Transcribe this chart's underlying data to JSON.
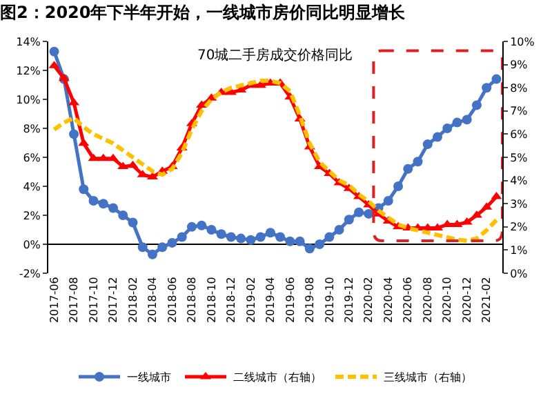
{
  "chart_data": {
    "type": "line",
    "title": "图2：2020年下半年开始，一线城市房价同比明显增长",
    "subtitle": "70城二手房成交价格同比",
    "categories": [
      "2017-06",
      null,
      "2017-08",
      null,
      "2017-10",
      null,
      "2017-12",
      null,
      "2018-02",
      null,
      "2018-04",
      null,
      "2018-06",
      null,
      "2018-08",
      null,
      "2018-10",
      null,
      "2018-12",
      null,
      "2019-02",
      null,
      "2019-04",
      null,
      "2019-06",
      null,
      "2019-08",
      null,
      "2019-10",
      null,
      "2019-12",
      null,
      "2020-02",
      null,
      "2020-04",
      null,
      "2020-06",
      null,
      "2020-08",
      null,
      "2020-10",
      null,
      "2020-12",
      null,
      "2021-02",
      null
    ],
    "series": [
      {
        "name": "一线城市",
        "color": "#4472c4",
        "marker": "circle",
        "line_style": "solid",
        "values": [
          13.3,
          11.4,
          7.6,
          3.8,
          3.0,
          2.8,
          2.5,
          2.0,
          1.5,
          -0.2,
          -0.7,
          -0.2,
          0.1,
          0.5,
          1.2,
          1.3,
          1.0,
          0.7,
          0.5,
          0.4,
          0.3,
          0.5,
          0.8,
          0.5,
          0.2,
          0.2,
          -0.3,
          0.0,
          0.5,
          1.0,
          1.7,
          2.2,
          2.1,
          2.5,
          3.0,
          4.0,
          5.2,
          5.7,
          6.9,
          7.4,
          8.0,
          8.4,
          8.6,
          9.6,
          10.8,
          11.4
        ]
      },
      {
        "name": "二线城市（右轴）",
        "color": "#ff0000",
        "marker": "triangle",
        "line_style": "solid",
        "axis": "y2",
        "values": [
          8.95,
          8.4,
          7.35,
          5.6,
          4.95,
          4.95,
          4.95,
          4.6,
          4.65,
          4.25,
          4.15,
          4.4,
          4.6,
          5.4,
          6.45,
          7.25,
          7.55,
          7.8,
          7.8,
          7.9,
          8.1,
          8.1,
          8.2,
          8.2,
          7.6,
          6.65,
          5.45,
          4.6,
          4.3,
          3.9,
          3.65,
          3.3,
          2.95,
          2.55,
          2.25,
          2.0,
          1.95,
          1.95,
          1.95,
          1.95,
          2.1,
          2.1,
          2.2,
          2.5,
          2.85,
          3.3
        ]
      },
      {
        "name": "三线城市（右轴）",
        "color": "#ffc000",
        "marker": "none",
        "line_style": "dashed",
        "axis": "y2",
        "values": [
          6.2,
          6.5,
          6.7,
          6.3,
          6.0,
          5.8,
          5.6,
          5.3,
          5.0,
          4.7,
          4.4,
          4.25,
          4.5,
          5.2,
          6.2,
          7.0,
          7.5,
          7.8,
          8.0,
          8.1,
          8.2,
          8.3,
          8.3,
          8.2,
          7.85,
          6.8,
          5.6,
          4.8,
          4.4,
          4.0,
          3.8,
          3.4,
          3.1,
          2.7,
          2.4,
          2.1,
          1.95,
          1.85,
          1.75,
          1.65,
          1.55,
          1.45,
          1.4,
          1.5,
          1.85,
          2.3
        ]
      }
    ],
    "ylim": [
      -2,
      14
    ],
    "yticks": [
      {
        "value": -2,
        "label": "-2%"
      },
      {
        "value": 0,
        "label": "0%"
      },
      {
        "value": 2,
        "label": "2%"
      },
      {
        "value": 4,
        "label": "4%"
      },
      {
        "value": 6,
        "label": "6%"
      },
      {
        "value": 8,
        "label": "8%"
      },
      {
        "value": 10,
        "label": "10%"
      },
      {
        "value": 12,
        "label": "12%"
      },
      {
        "value": 14,
        "label": "14%"
      }
    ],
    "y2lim": [
      0,
      10
    ],
    "y2ticks": [
      {
        "value": 0,
        "label": "0%"
      },
      {
        "value": 1,
        "label": "1%"
      },
      {
        "value": 2,
        "label": "2%"
      },
      {
        "value": 3,
        "label": "3%"
      },
      {
        "value": 4,
        "label": "4%"
      },
      {
        "value": 5,
        "label": "5%"
      },
      {
        "value": 6,
        "label": "6%"
      },
      {
        "value": 7,
        "label": "7%"
      },
      {
        "value": 8,
        "label": "8%"
      },
      {
        "value": 9,
        "label": "9%"
      },
      {
        "value": 10,
        "label": "10%"
      }
    ],
    "grid": false,
    "ref_lines": [
      {
        "axis": "y",
        "value": 0,
        "color": "#000000"
      }
    ],
    "legend": "bottom"
  }
}
